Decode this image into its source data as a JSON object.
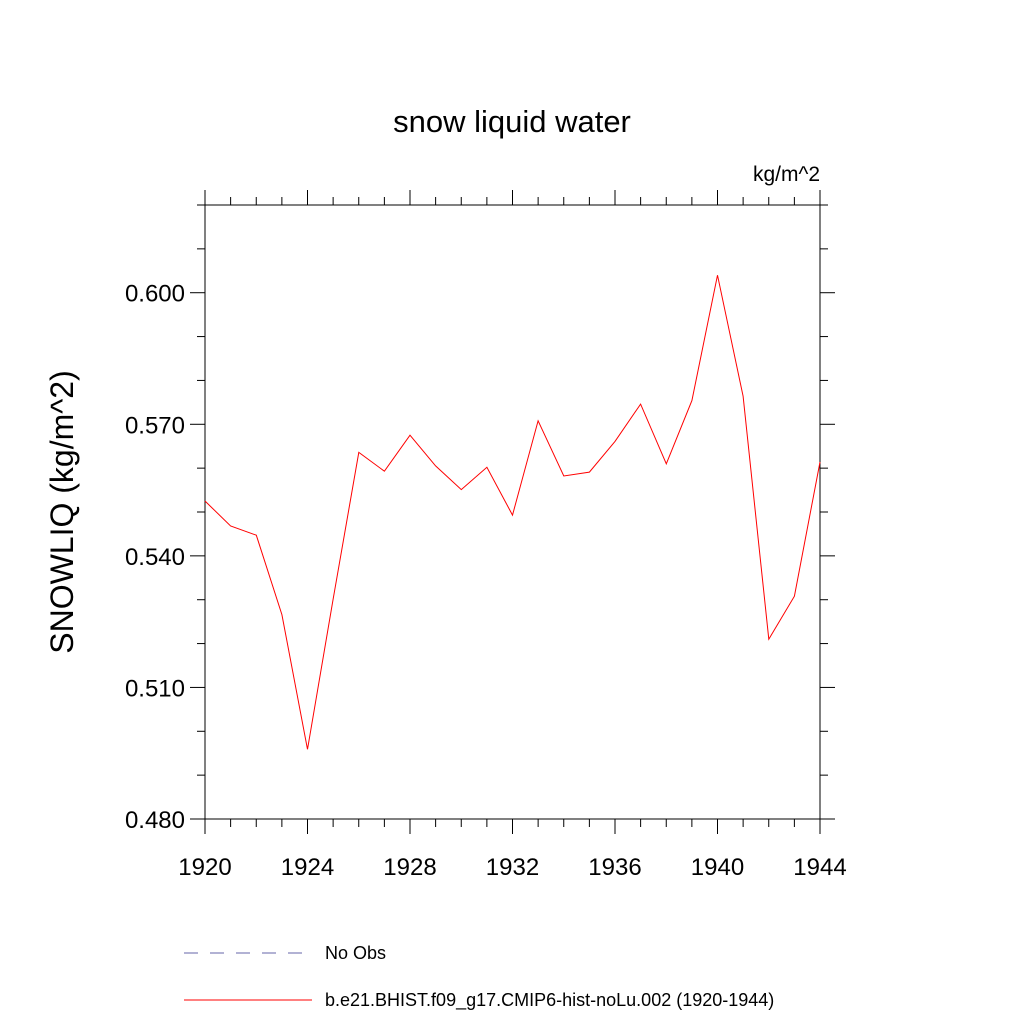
{
  "chart_data": {
    "type": "line",
    "title": "snow liquid water",
    "units_label": "kg/m^2",
    "ylabel": "SNOWLIQ  (kg/m^2)",
    "xlabel": "",
    "xlim": [
      1920,
      1944
    ],
    "ylim": [
      0.48,
      0.62
    ],
    "x_ticks": [
      1920,
      1924,
      1928,
      1932,
      1936,
      1940,
      1944
    ],
    "x_tick_labels": [
      "1920",
      "1924",
      "1928",
      "1932",
      "1936",
      "1940",
      "1944"
    ],
    "y_ticks": [
      0.48,
      0.51,
      0.54,
      0.57,
      0.6
    ],
    "y_tick_labels": [
      "0.480",
      "0.510",
      "0.540",
      "0.570",
      "0.600"
    ],
    "x_minor_step": 1,
    "y_minor_step": 0.01,
    "grid": false,
    "legend_position": "bottom",
    "series": [
      {
        "name": "No Obs",
        "color": "#6666aa",
        "style": "dashed",
        "values": []
      },
      {
        "name": "b.e21.BHIST.f09_g17.CMIP6-hist-noLu.002 (1920-1944)",
        "color": "#ff0000",
        "style": "solid",
        "x": [
          1920,
          1921,
          1922,
          1923,
          1924,
          1925,
          1926,
          1927,
          1928,
          1929,
          1930,
          1931,
          1932,
          1933,
          1934,
          1935,
          1936,
          1937,
          1938,
          1939,
          1940,
          1941,
          1942,
          1943,
          1944
        ],
        "values": [
          0.5525,
          0.5468,
          0.5447,
          0.5266,
          0.4959,
          0.5301,
          0.5636,
          0.5593,
          0.5675,
          0.5605,
          0.5551,
          0.5602,
          0.5493,
          0.5708,
          0.5582,
          0.5591,
          0.5661,
          0.5746,
          0.561,
          0.5754,
          0.604,
          0.5764,
          0.521,
          0.5308,
          0.5614
        ]
      }
    ]
  }
}
